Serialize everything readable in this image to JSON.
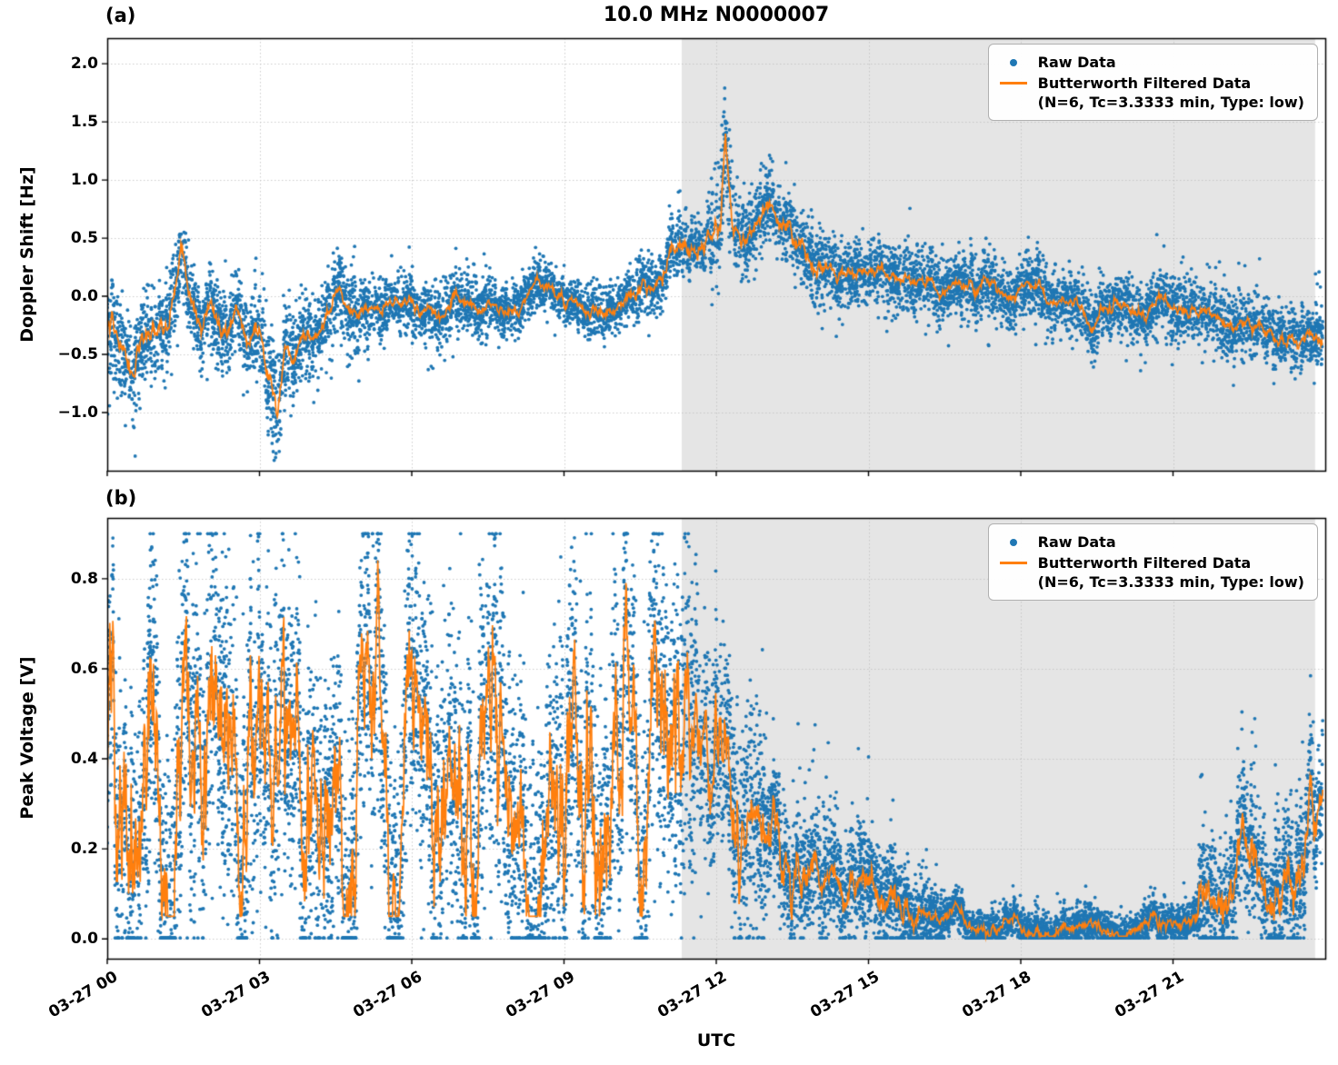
{
  "figure": {
    "title": "10.0 MHz N0000007",
    "xlabel": "UTC",
    "bg": "#ffffff"
  },
  "colors": {
    "raw": "#1f77b4",
    "filtered": "#ff7f0e",
    "shade": "#e5e5e5",
    "grid": "#bbbbbb",
    "axis": "#000000"
  },
  "legend": {
    "raw_label": "Raw Data",
    "filtered_label": "Butterworth Filtered Data",
    "filtered_sub": "(N=6, Tc=3.3333 min, Type: low)"
  },
  "x_axis": {
    "lim": [
      0,
      24
    ],
    "tick_values": [
      0,
      3,
      6,
      9,
      12,
      15,
      18,
      21
    ],
    "tick_labels": [
      "03-27 00",
      "03-27 03",
      "03-27 06",
      "03-27 09",
      "03-27 12",
      "03-27 15",
      "03-27 18",
      "03-27 21"
    ]
  },
  "shade": {
    "start": 11.32,
    "end": 23.8
  },
  "chart_data": [
    {
      "type": "scatter",
      "panel_label": "(a)",
      "ylabel": "Doppler Shift [Hz]",
      "ylim": [
        -1.5,
        2.22
      ],
      "ytick_values": [
        2.0,
        1.5,
        1.0,
        0.5,
        0.0,
        -0.5,
        -1.0
      ],
      "ytick_labels": [
        "2.0",
        "1.5",
        "1.0",
        "0.5",
        "0.0",
        "−0.5",
        "−1.0"
      ],
      "series": [
        {
          "name": "Raw Data",
          "kind": "scatter",
          "color_key": "raw"
        },
        {
          "name": "Butterworth Filtered Data (N=6, Tc=3.3333 min, Type: low)",
          "kind": "line",
          "color_key": "filtered"
        }
      ],
      "filtered_keypoints": [
        [
          0,
          -0.22
        ],
        [
          0.25,
          -0.38
        ],
        [
          0.55,
          -0.48
        ],
        [
          0.8,
          -0.42
        ],
        [
          1.0,
          -0.3
        ],
        [
          1.2,
          -0.18
        ],
        [
          1.45,
          0.35
        ],
        [
          1.65,
          0.02
        ],
        [
          1.85,
          -0.28
        ],
        [
          2.05,
          -0.12
        ],
        [
          2.3,
          -0.3
        ],
        [
          2.55,
          -0.08
        ],
        [
          2.8,
          -0.28
        ],
        [
          3.0,
          -0.18
        ],
        [
          3.2,
          -0.6
        ],
        [
          3.35,
          -1.0
        ],
        [
          3.5,
          -0.45
        ],
        [
          3.65,
          -0.55
        ],
        [
          3.85,
          -0.32
        ],
        [
          4.1,
          -0.35
        ],
        [
          4.35,
          -0.12
        ],
        [
          4.6,
          0.08
        ],
        [
          4.85,
          -0.18
        ],
        [
          5.1,
          -0.08
        ],
        [
          5.4,
          -0.22
        ],
        [
          5.7,
          -0.08
        ],
        [
          6.0,
          -0.14
        ],
        [
          6.3,
          -0.05
        ],
        [
          6.6,
          -0.16
        ],
        [
          6.9,
          -0.06
        ],
        [
          7.2,
          -0.12
        ],
        [
          7.5,
          -0.04
        ],
        [
          7.8,
          -0.1
        ],
        [
          8.1,
          -0.02
        ],
        [
          8.45,
          0.15
        ],
        [
          8.75,
          0.1
        ],
        [
          9.05,
          -0.04
        ],
        [
          9.35,
          -0.1
        ],
        [
          9.65,
          -0.16
        ],
        [
          9.95,
          -0.07
        ],
        [
          10.25,
          0.04
        ],
        [
          10.55,
          0.1
        ],
        [
          10.85,
          0.22
        ],
        [
          11.1,
          0.42
        ],
        [
          11.35,
          0.58
        ],
        [
          11.55,
          0.5
        ],
        [
          11.75,
          0.42
        ],
        [
          11.95,
          0.55
        ],
        [
          12.08,
          0.52
        ],
        [
          12.18,
          1.4
        ],
        [
          12.32,
          0.62
        ],
        [
          12.5,
          0.5
        ],
        [
          12.7,
          0.56
        ],
        [
          12.9,
          0.66
        ],
        [
          13.1,
          0.74
        ],
        [
          13.3,
          0.58
        ],
        [
          13.55,
          0.45
        ],
        [
          13.8,
          0.38
        ],
        [
          14.1,
          0.32
        ],
        [
          14.5,
          0.27
        ],
        [
          15.0,
          0.22
        ],
        [
          15.5,
          0.18
        ],
        [
          16.0,
          0.14
        ],
        [
          16.5,
          0.1
        ],
        [
          17.0,
          0.09
        ],
        [
          17.5,
          0.05
        ],
        [
          18.0,
          0.03
        ],
        [
          18.5,
          0.0
        ],
        [
          18.9,
          -0.03
        ],
        [
          19.2,
          -0.12
        ],
        [
          19.4,
          -0.28
        ],
        [
          19.6,
          -0.12
        ],
        [
          19.9,
          -0.08
        ],
        [
          20.3,
          -0.1
        ],
        [
          20.6,
          -0.08
        ],
        [
          20.85,
          0.02
        ],
        [
          21.1,
          -0.15
        ],
        [
          21.4,
          -0.12
        ],
        [
          21.7,
          -0.2
        ],
        [
          22.0,
          -0.26
        ],
        [
          22.3,
          -0.2
        ],
        [
          22.6,
          -0.3
        ],
        [
          22.9,
          -0.28
        ],
        [
          23.2,
          -0.33
        ],
        [
          23.45,
          -0.45
        ],
        [
          23.65,
          -0.3
        ],
        [
          23.9,
          -0.38
        ]
      ],
      "line_jitter": [
        [
          0,
          4,
          0.07
        ],
        [
          4,
          10.5,
          0.045
        ],
        [
          10.5,
          14,
          0.07
        ],
        [
          14,
          23.95,
          0.045
        ]
      ],
      "line_clip_lo": [
        [
          0,
          24,
          -1.08
        ]
      ],
      "line_clip_hi": [
        [
          0,
          24,
          1.42
        ]
      ],
      "scatter_segments": [
        [
          0,
          1.2,
          0.2,
          0.05,
          -0.9,
          0.1
        ],
        [
          1.2,
          2.9,
          0.16,
          0.02,
          -0.6,
          0.15
        ],
        [
          2.9,
          3.7,
          0.22,
          0.08,
          -0.5,
          0.1
        ],
        [
          3.7,
          5,
          0.17,
          0.04,
          -0.6,
          0.1
        ],
        [
          5,
          7.5,
          0.13,
          0.025,
          -0.55,
          0.1
        ],
        [
          7.5,
          10.4,
          0.11,
          0.012,
          -0.3,
          0.15
        ],
        [
          10.4,
          11.9,
          0.13,
          0.02,
          -0.2,
          0.45
        ],
        [
          11.9,
          12.35,
          0.25,
          0.07,
          -0.2,
          0.65
        ],
        [
          12.35,
          14,
          0.16,
          0.03,
          -0.3,
          0.5
        ],
        [
          14,
          16.5,
          0.14,
          0.025,
          -0.5,
          0.3
        ],
        [
          16.5,
          20.5,
          0.13,
          0.02,
          -0.6,
          0.35
        ],
        [
          20.5,
          23.95,
          0.13,
          0.03,
          -0.5,
          0.6
        ]
      ],
      "scatter_clip": [
        -1.45,
        2.12
      ],
      "n_scatter": 9500,
      "seed": 1337
    },
    {
      "type": "scatter",
      "panel_label": "(b)",
      "ylabel": "Peak Voltage [V]",
      "ylim": [
        -0.044,
        0.935
      ],
      "ytick_values": [
        0.8,
        0.6,
        0.4,
        0.2,
        0.0
      ],
      "ytick_labels": [
        "0.8",
        "0.6",
        "0.4",
        "0.2",
        "0.0"
      ],
      "series": [
        {
          "name": "Raw Data",
          "kind": "scatter",
          "color_key": "raw"
        },
        {
          "name": "Butterworth Filtered Data (N=6, Tc=3.3333 min, Type: low)",
          "kind": "line",
          "color_key": "filtered"
        }
      ],
      "filtered_keypoints": [
        [
          0,
          0.3
        ],
        [
          0.5,
          0.33
        ],
        [
          1.0,
          0.36
        ],
        [
          1.5,
          0.38
        ],
        [
          2.0,
          0.38
        ],
        [
          2.5,
          0.36
        ],
        [
          3.0,
          0.35
        ],
        [
          3.5,
          0.33
        ],
        [
          4.0,
          0.33
        ],
        [
          4.5,
          0.35
        ],
        [
          5.0,
          0.36
        ],
        [
          5.5,
          0.35
        ],
        [
          6.0,
          0.35
        ],
        [
          6.5,
          0.36
        ],
        [
          7.0,
          0.38
        ],
        [
          7.5,
          0.4
        ],
        [
          8.0,
          0.43
        ],
        [
          8.5,
          0.46
        ],
        [
          9.0,
          0.48
        ],
        [
          9.5,
          0.5
        ],
        [
          10.0,
          0.53
        ],
        [
          10.5,
          0.56
        ],
        [
          10.9,
          0.58
        ],
        [
          11.3,
          0.52
        ],
        [
          11.7,
          0.47
        ],
        [
          12.0,
          0.43
        ],
        [
          12.3,
          0.32
        ],
        [
          12.6,
          0.28
        ],
        [
          12.9,
          0.24
        ],
        [
          13.2,
          0.2
        ],
        [
          13.6,
          0.16
        ],
        [
          14.0,
          0.14
        ],
        [
          14.5,
          0.12
        ],
        [
          15.0,
          0.1
        ],
        [
          15.5,
          0.08
        ],
        [
          16.0,
          0.055
        ],
        [
          16.5,
          0.035
        ],
        [
          17.0,
          0.028
        ],
        [
          17.5,
          0.025
        ],
        [
          18.0,
          0.022
        ],
        [
          18.5,
          0.022
        ],
        [
          19.0,
          0.02
        ],
        [
          19.5,
          0.022
        ],
        [
          20.0,
          0.022
        ],
        [
          20.5,
          0.025
        ],
        [
          21.0,
          0.03
        ],
        [
          21.5,
          0.045
        ],
        [
          22.0,
          0.07
        ],
        [
          22.3,
          0.09
        ],
        [
          22.6,
          0.12
        ],
        [
          22.9,
          0.15
        ],
        [
          23.2,
          0.18
        ],
        [
          23.5,
          0.22
        ],
        [
          23.9,
          0.3
        ]
      ],
      "line_jitter": [
        [
          0,
          11.5,
          0.2
        ],
        [
          11.5,
          12.5,
          0.1
        ],
        [
          12.5,
          14,
          0.05
        ],
        [
          14,
          16,
          0.03
        ],
        [
          16,
          21.5,
          0.012
        ],
        [
          21.5,
          23.95,
          0.05
        ]
      ],
      "line_clip_lo": [
        [
          0,
          12,
          0.05
        ],
        [
          12,
          24,
          0.006
        ]
      ],
      "line_clip_hi": [
        [
          0,
          24,
          0.88
        ]
      ],
      "scatter_segments": [
        [
          0,
          11.6,
          0.17,
          0.02,
          -0.25,
          0.25
        ],
        [
          11.6,
          13,
          0.12,
          0.03,
          -0.05,
          0.3
        ],
        [
          13,
          15.5,
          0.06,
          0.03,
          0,
          0.3
        ],
        [
          15.5,
          16.5,
          0.04,
          0.02,
          0,
          0.15
        ],
        [
          16.5,
          21.5,
          0.02,
          0.012,
          0,
          0.09
        ],
        [
          21.5,
          23.95,
          0.07,
          0.03,
          0,
          0.3
        ]
      ],
      "scatter_clip": [
        0.002,
        0.9
      ],
      "n_scatter": 13000,
      "seed": 2024
    }
  ]
}
